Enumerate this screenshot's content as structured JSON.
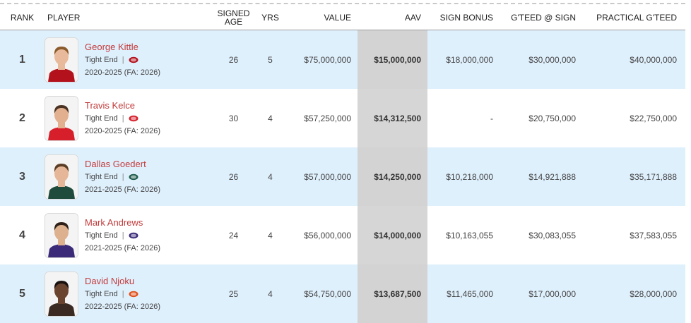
{
  "columns": {
    "rank": "RANK",
    "player": "PLAYER",
    "signed_age_1": "SIGNED",
    "signed_age_2": "AGE",
    "yrs": "YRS",
    "value": "VALUE",
    "aav": "AAV",
    "sign_bonus": "SIGN BONUS",
    "gteed_sign": "G'TEED @ SIGN",
    "practical_gteed": "PRACTICAL G'TEED"
  },
  "rows": [
    {
      "rank": "1",
      "name": "George Kittle",
      "position": "Tight End",
      "team_logo": "49ers-logo-icon",
      "years": "2020-2025 (FA: 2026)",
      "age": "26",
      "yrs": "5",
      "value": "$75,000,000",
      "aav": "$15,000,000",
      "sign_bonus": "$18,000,000",
      "gteed_sign": "$30,000,000",
      "practical_gteed": "$40,000,000",
      "jersey_color": "#b3121d",
      "skin": "#e8b99a",
      "hair": "#8a5a2b"
    },
    {
      "rank": "2",
      "name": "Travis Kelce",
      "position": "Tight End",
      "team_logo": "chiefs-logo-icon",
      "years": "2020-2025 (FA: 2026)",
      "age": "30",
      "yrs": "4",
      "value": "$57,250,000",
      "aav": "$14,312,500",
      "sign_bonus": "-",
      "gteed_sign": "$20,750,000",
      "practical_gteed": "$22,750,000",
      "jersey_color": "#d61f2b",
      "skin": "#e3b08f",
      "hair": "#4a3322"
    },
    {
      "rank": "3",
      "name": "Dallas Goedert",
      "position": "Tight End",
      "team_logo": "eagles-logo-icon",
      "years": "2021-2025 (FA: 2026)",
      "age": "26",
      "yrs": "4",
      "value": "$57,000,000",
      "aav": "$14,250,000",
      "sign_bonus": "$10,218,000",
      "gteed_sign": "$14,921,888",
      "practical_gteed": "$35,171,888",
      "jersey_color": "#1f4a3c",
      "skin": "#e6b698",
      "hair": "#5a3d26"
    },
    {
      "rank": "4",
      "name": "Mark Andrews",
      "position": "Tight End",
      "team_logo": "ravens-logo-icon",
      "years": "2021-2025 (FA: 2026)",
      "age": "24",
      "yrs": "4",
      "value": "$56,000,000",
      "aav": "$14,000,000",
      "sign_bonus": "$10,163,055",
      "gteed_sign": "$30,083,055",
      "practical_gteed": "$37,583,055",
      "jersey_color": "#3b2a78",
      "skin": "#ddb08e",
      "hair": "#2e2018"
    },
    {
      "rank": "5",
      "name": "David Njoku",
      "position": "Tight End",
      "team_logo": "browns-logo-icon",
      "years": "2022-2025 (FA: 2026)",
      "age": "25",
      "yrs": "4",
      "value": "$54,750,000",
      "aav": "$13,687,500",
      "sign_bonus": "$11,465,000",
      "gteed_sign": "$17,000,000",
      "practical_gteed": "$28,000,000",
      "jersey_color": "#3a2a22",
      "skin": "#6b4430",
      "hair": "#1a1210"
    }
  ]
}
